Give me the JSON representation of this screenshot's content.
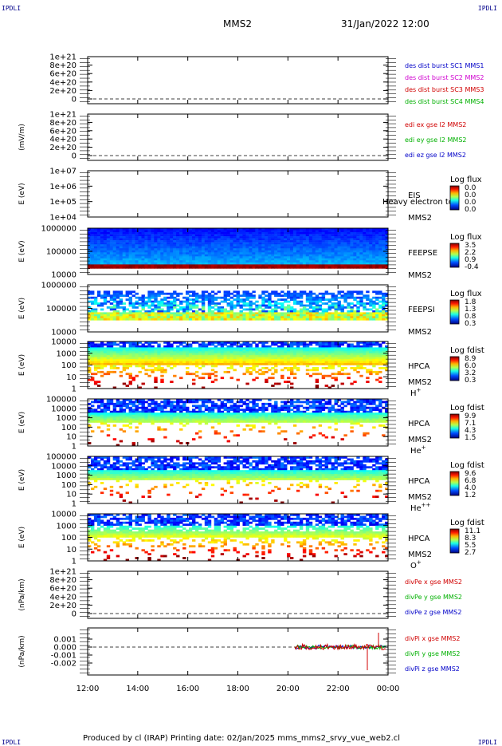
{
  "header": {
    "corner": "IPDLI",
    "mission": "MMS2",
    "datetime": "31/Jan/2022 12:00"
  },
  "footer": {
    "text": "Produced by cl (IRAP)   Printing date: 02/Jan/2025   mms_mms2_srvy_vue_web2.cl",
    "corner": "IPDLI"
  },
  "chart_data": {
    "type": "heatmap",
    "x_ticks": [
      "12:00",
      "14:00",
      "16:00",
      "18:00",
      "20:00",
      "22:00",
      "00:00"
    ],
    "xlim": [
      "12:00",
      "00:00"
    ],
    "panels": [
      {
        "id": "dist",
        "ylabel": "",
        "yticks": [
          "1e+21",
          "8e+20",
          "6e+20",
          "4e+20",
          "2e+20",
          "0"
        ],
        "legend": [
          {
            "text": "des dist burst SC1 MMS1",
            "color": "#0000c8"
          },
          {
            "text": "des dist burst SC2 MMS2",
            "color": "#d000d0"
          },
          {
            "text": "des dist burst SC3 MMS3",
            "color": "#d00000"
          },
          {
            "text": "des dist burst SC4 MMS4",
            "color": "#00b000"
          }
        ]
      },
      {
        "id": "edi",
        "ylabel": "(mV/m)",
        "yticks": [
          "1e+21",
          "8e+20",
          "6e+20",
          "4e+20",
          "2e+20",
          "0"
        ],
        "legend": [
          {
            "text": "edi ex gse l2 MMS2",
            "color": "#d00000"
          },
          {
            "text": "edi ey gse l2 MMS2",
            "color": "#00b000"
          },
          {
            "text": "edi ez gse l2 MMS2",
            "color": "#0000c8"
          }
        ]
      },
      {
        "id": "eis",
        "ylabel": "E (eV)",
        "yticks": [
          "1e+07",
          "1e+06",
          "1e+05",
          "1e+04"
        ],
        "inst": "EIS",
        "sc": "MMS2",
        "extra": "Heavy electron tof",
        "cbar": {
          "title": "Log flux",
          "values": [
            "0.0",
            "0.0",
            "0.0",
            "0.0"
          ]
        }
      },
      {
        "id": "feepse",
        "ylabel": "E (eV)",
        "yticks": [
          "1000000",
          "100000",
          "10000"
        ],
        "inst": "FEEPSE",
        "sc": "MMS2",
        "cbar": {
          "title": "Log flux",
          "values": [
            "3.5",
            "2.2",
            "0.9",
            "-0.4"
          ]
        }
      },
      {
        "id": "feepsi",
        "ylabel": "E (eV)",
        "yticks": [
          "1000000",
          "100000",
          "10000"
        ],
        "inst": "FEEPSI",
        "sc": "MMS2",
        "cbar": {
          "title": "Log flux",
          "values": [
            "1.8",
            "1.3",
            "0.8",
            "0.3"
          ]
        }
      },
      {
        "id": "hpcah",
        "ylabel": "E (eV)",
        "yticks": [
          "10000",
          "1000",
          "100",
          "10",
          "1"
        ],
        "inst": "HPCA",
        "sc": "MMS2",
        "species": "H",
        "sup": "+",
        "cbar": {
          "title": "Log fdist",
          "values": [
            "8.9",
            "6.0",
            "3.2",
            "0.3"
          ]
        }
      },
      {
        "id": "hpcahe",
        "ylabel": "E (eV)",
        "yticks": [
          "100000",
          "10000",
          "1000",
          "100",
          "10",
          "1"
        ],
        "inst": "HPCA",
        "sc": "MMS2",
        "species": "He",
        "sup": "+",
        "cbar": {
          "title": "Log fdist",
          "values": [
            "9.9",
            "7.1",
            "4.3",
            "1.5"
          ]
        }
      },
      {
        "id": "hpcahepp",
        "ylabel": "E (eV)",
        "yticks": [
          "100000",
          "10000",
          "1000",
          "100",
          "10",
          "1"
        ],
        "inst": "HPCA",
        "sc": "MMS2",
        "species": "He",
        "sup": "++",
        "cbar": {
          "title": "Log fdist",
          "values": [
            "9.6",
            "6.8",
            "4.0",
            "1.2"
          ]
        }
      },
      {
        "id": "hpcao",
        "ylabel": "E (eV)",
        "yticks": [
          "10000",
          "1000",
          "100",
          "10",
          "1"
        ],
        "inst": "HPCA",
        "sc": "MMS2",
        "species": "O",
        "sup": "+",
        "cbar": {
          "title": "Log fdist",
          "values": [
            "11.1",
            "8.3",
            "5.5",
            "2.7"
          ]
        }
      },
      {
        "id": "divpe",
        "ylabel": "(nPa/km)",
        "yticks": [
          "1e+21",
          "8e+20",
          "6e+20",
          "4e+20",
          "2e+20",
          "0"
        ],
        "legend": [
          {
            "text": "divPe x gse MMS2",
            "color": "#d00000"
          },
          {
            "text": "divPe y gse MMS2",
            "color": "#00b000"
          },
          {
            "text": "divPe z gse MMS2",
            "color": "#0000c8"
          }
        ]
      },
      {
        "id": "divpi",
        "ylabel": "(nPa/km)",
        "yticks": [
          "0.001",
          "0.000",
          "-0.001",
          "-0.002"
        ],
        "legend": [
          {
            "text": "divPi x gse MMS2",
            "color": "#d00000"
          },
          {
            "text": "divPi y gse MMS2",
            "color": "#00b000"
          },
          {
            "text": "divPi z gse MMS2",
            "color": "#0000c8"
          }
        ]
      }
    ]
  }
}
